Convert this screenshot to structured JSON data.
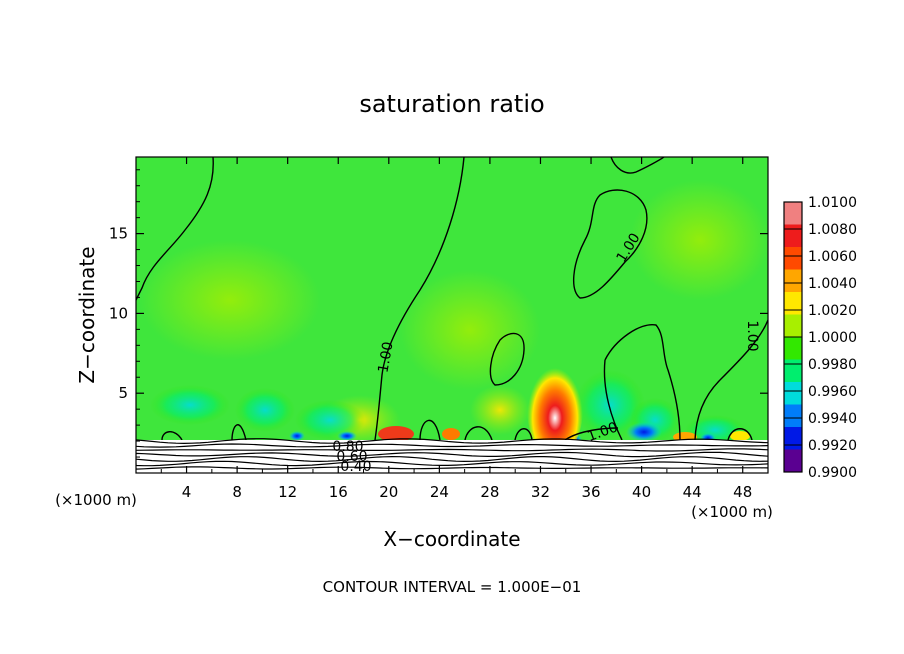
{
  "chart_data": {
    "type": "heatmap",
    "title": "saturation ratio",
    "xlabel": "X−coordinate",
    "ylabel": "Z−coordinate",
    "x_unit_left": "(×1000 m)",
    "x_unit_right": "(×1000 m)",
    "footer": "CONTOUR INTERVAL = 1.000E−01",
    "xlim": [
      0,
      50
    ],
    "ylim": [
      0,
      19.8
    ],
    "x_ticks": [
      "4",
      "8",
      "12",
      "16",
      "20",
      "24",
      "28",
      "32",
      "36",
      "40",
      "44",
      "48"
    ],
    "y_ticks": [
      "5",
      "10",
      "15"
    ],
    "colorbar": {
      "labels": [
        "1.0100",
        "1.0080",
        "1.0060",
        "1.0040",
        "1.0020",
        "1.0000",
        "0.9980",
        "0.9960",
        "0.9940",
        "0.9920",
        "0.9900"
      ],
      "colors": [
        "#f08080",
        "#ee1c1c",
        "#ff4a00",
        "#ffa600",
        "#ffe800",
        "#a8ef00",
        "#32e800",
        "#00ee6e",
        "#00dcdc",
        "#007dfa",
        "#0019e6",
        "#5a0091"
      ]
    },
    "background_color": "#3fe63c",
    "contour_labels": [
      "1.00",
      "1.00",
      "1.00",
      "1.00",
      "1.00",
      "0.80",
      "0.60",
      "0.40"
    ]
  }
}
